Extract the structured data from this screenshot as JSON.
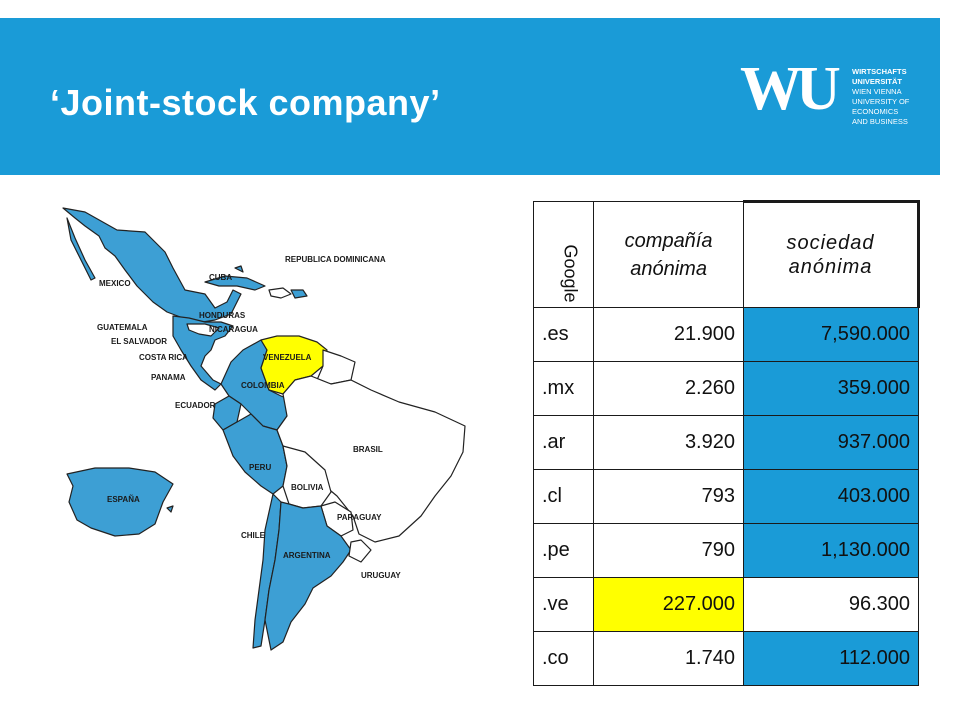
{
  "header": {
    "title": "‘Joint-stock company’",
    "logo": {
      "mark": "WU",
      "lines": [
        "WIRTSCHAFTS",
        "UNIVERSITÄT",
        "WIEN VIENNA",
        "UNIVERSITY OF",
        "ECONOMICS",
        "AND BUSINESS"
      ]
    }
  },
  "map": {
    "labels": {
      "mexico": "MEXICO",
      "cuba": "CUBA",
      "dominican_republic": "REPUBLICA DOMINICANA",
      "honduras": "HONDURAS",
      "guatemala": "GUATEMALA",
      "nicaragua": "NICARAGUA",
      "el_salvador": "EL SALVADOR",
      "costa_rica": "COSTA RICA",
      "panama": "PANAMA",
      "venezuela": "VENEZUELA",
      "colombia": "COLOMBIA",
      "ecuador": "ECUADOR",
      "brazil": "BRASIL",
      "peru": "PERU",
      "bolivia": "BOLIVIA",
      "paraguay": "PARAGUAY",
      "espana": "ESPAÑA",
      "chile": "CHILE",
      "argentina": "ARGENTINA",
      "uruguay": "URUGUAY"
    },
    "colors": {
      "country": "#3d9fd4",
      "highlight": "#ffff00",
      "neutral": "#ffffff",
      "outline": "#222222"
    }
  },
  "table": {
    "headers": {
      "google": "Google",
      "compania": "compañía anónima",
      "sociedad": "sociedad anónima"
    },
    "rows": [
      {
        "domain": ".es",
        "compania": "21.900",
        "sociedad": "7,590.000"
      },
      {
        "domain": ".mx",
        "compania": "2.260",
        "sociedad": "359.000"
      },
      {
        "domain": ".ar",
        "compania": "3.920",
        "sociedad": "937.000"
      },
      {
        "domain": ".cl",
        "compania": "793",
        "sociedad": "403.000"
      },
      {
        "domain": ".pe",
        "compania": "790",
        "sociedad": "1,130.000"
      },
      {
        "domain": ".ve",
        "compania": "227.000",
        "sociedad": "96.300"
      },
      {
        "domain": ".co",
        "compania": "1.740",
        "sociedad": "112.000"
      }
    ],
    "colors": {
      "sociedad_fill": "#1a9bd7",
      "highlight": "#ffff00"
    }
  }
}
